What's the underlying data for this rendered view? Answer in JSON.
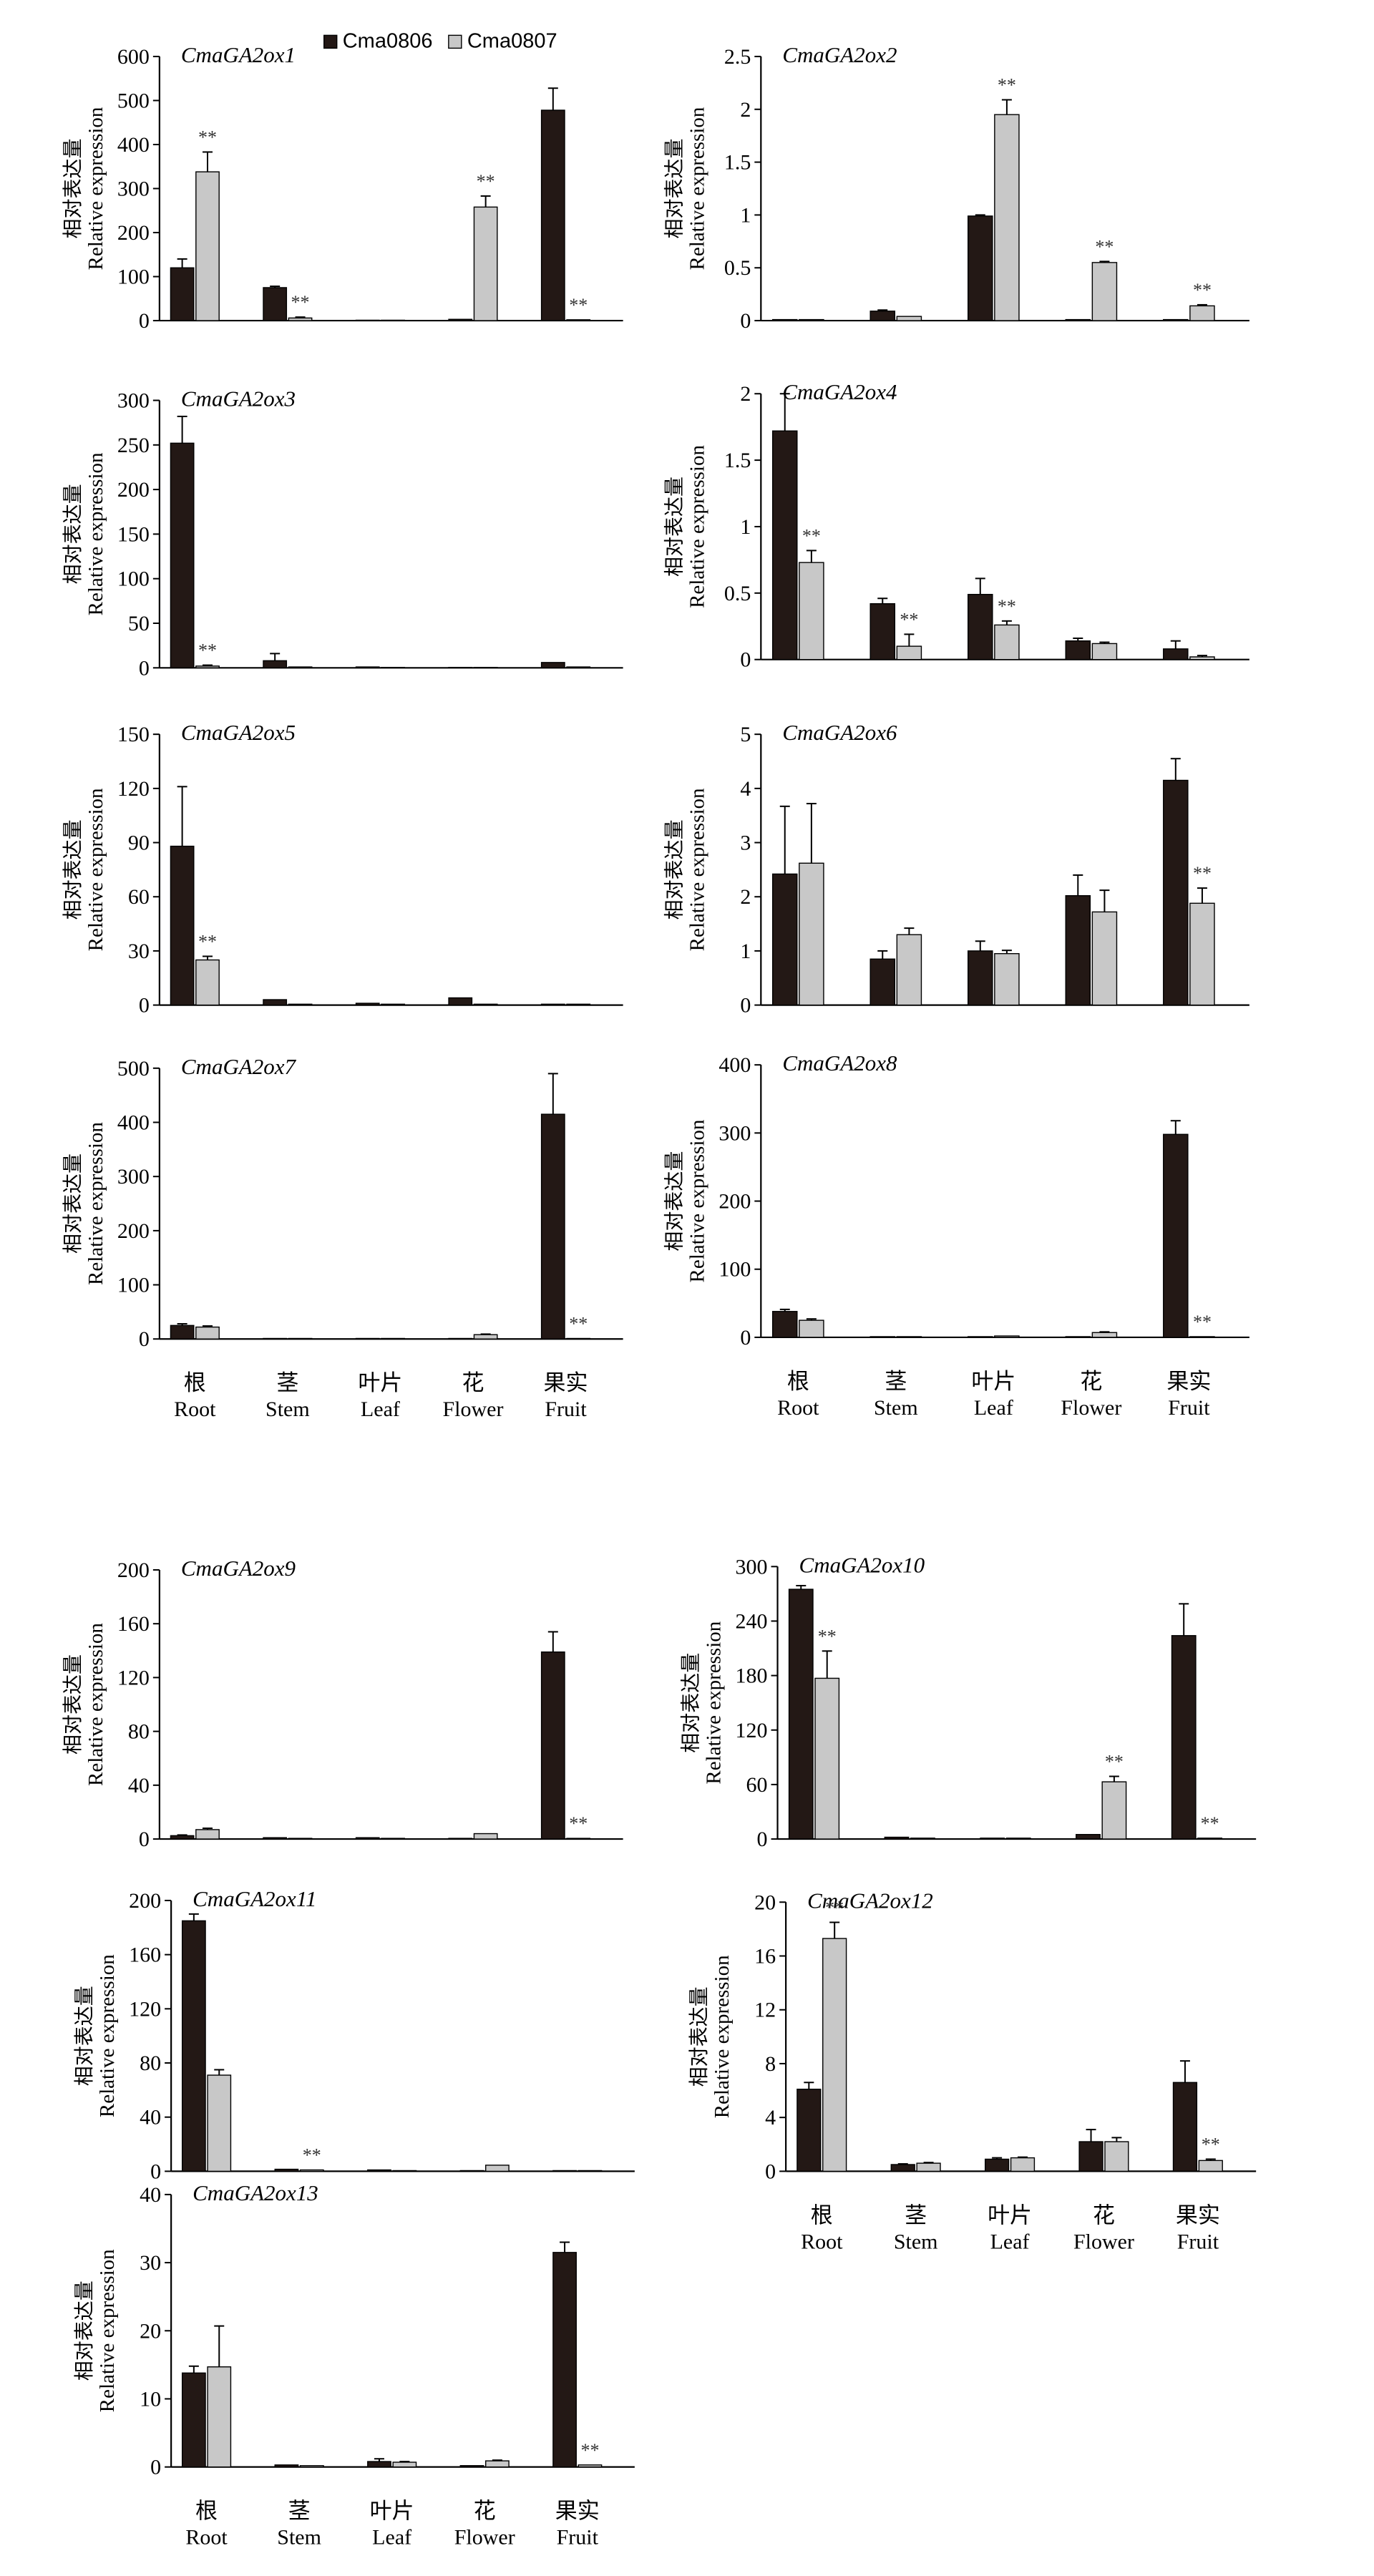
{
  "colors": {
    "Cma0806": "#231815",
    "Cma0807": "#c8c8c8",
    "axis": "#000000"
  },
  "legend": [
    {
      "name": "Cma0806",
      "color": "#231815"
    },
    {
      "name": "Cma0807",
      "color": "#c8c8c8"
    }
  ],
  "y_title_cn": "相对表达量",
  "y_title_en": "Relative expression",
  "categories": [
    {
      "cn": "根",
      "en": "Root"
    },
    {
      "cn": "茎",
      "en": "Stem"
    },
    {
      "cn": "叶片",
      "en": "Leaf"
    },
    {
      "cn": "花",
      "en": "Flower"
    },
    {
      "cn": "果实",
      "en": "Fruit"
    }
  ],
  "significance_mark": "**",
  "chart_data": [
    {
      "type": "bar",
      "title": "CmaGA2ox1",
      "ylim": [
        0,
        600
      ],
      "yticks": [
        "0",
        "100",
        "200",
        "300",
        "400",
        "500",
        "600"
      ],
      "series": [
        {
          "name": "Cma0806",
          "values": [
            120,
            75,
            1,
            3,
            478
          ],
          "errors": [
            20,
            3,
            0,
            0,
            50
          ]
        },
        {
          "name": "Cma0807",
          "values": [
            338,
            6,
            1,
            258,
            2
          ],
          "errors": [
            45,
            2,
            0,
            25,
            0
          ]
        }
      ],
      "significance": [
        [
          1,
          0,
          "**"
        ],
        [
          1,
          1,
          "**"
        ],
        [
          1,
          3,
          "**"
        ],
        [
          1,
          4,
          "**"
        ]
      ]
    },
    {
      "type": "bar",
      "title": "CmaGA2ox2",
      "ylim": [
        0,
        2.5
      ],
      "yticks": [
        "0",
        "0.5",
        "1",
        "1.5",
        "2",
        "2.5"
      ],
      "series": [
        {
          "name": "Cma0806",
          "values": [
            0.01,
            0.09,
            0.99,
            0.01,
            0.01
          ],
          "errors": [
            0,
            0.01,
            0.01,
            0,
            0
          ]
        },
        {
          "name": "Cma0807",
          "values": [
            0.01,
            0.04,
            1.95,
            0.55,
            0.14
          ],
          "errors": [
            0,
            0,
            0.14,
            0.01,
            0.01
          ]
        }
      ],
      "significance": [
        [
          1,
          2,
          "**"
        ],
        [
          1,
          3,
          "**"
        ],
        [
          1,
          4,
          "**"
        ]
      ]
    },
    {
      "type": "bar",
      "title": "CmaGA2ox3",
      "ylim": [
        0,
        300
      ],
      "yticks": [
        "0",
        "50",
        "100",
        "150",
        "200",
        "250",
        "300"
      ],
      "series": [
        {
          "name": "Cma0806",
          "values": [
            252,
            8,
            1,
            0.5,
            6
          ],
          "errors": [
            30,
            8,
            0,
            0,
            0
          ]
        },
        {
          "name": "Cma0807",
          "values": [
            2,
            1,
            0.5,
            0.5,
            1
          ],
          "errors": [
            1,
            0,
            0,
            0,
            0
          ]
        }
      ],
      "significance": [
        [
          1,
          0,
          "**"
        ]
      ]
    },
    {
      "type": "bar",
      "title": "CmaGA2ox4",
      "ylim": [
        0,
        2
      ],
      "yticks": [
        "0",
        "0.5",
        "1",
        "1.5",
        "2"
      ],
      "series": [
        {
          "name": "Cma0806",
          "values": [
            1.72,
            0.42,
            0.49,
            0.14,
            0.08
          ],
          "errors": [
            0.28,
            0.04,
            0.12,
            0.02,
            0.06
          ]
        },
        {
          "name": "Cma0807",
          "values": [
            0.73,
            0.1,
            0.26,
            0.12,
            0.02
          ],
          "errors": [
            0.09,
            0.09,
            0.03,
            0.01,
            0.01
          ]
        }
      ],
      "significance": [
        [
          1,
          0,
          "**"
        ],
        [
          1,
          1,
          "**"
        ],
        [
          1,
          2,
          "**"
        ]
      ]
    },
    {
      "type": "bar",
      "title": "CmaGA2ox5",
      "ylim": [
        0,
        150
      ],
      "yticks": [
        "0",
        "30",
        "60",
        "90",
        "120",
        "150"
      ],
      "series": [
        {
          "name": "Cma0806",
          "values": [
            88,
            3,
            1,
            4,
            0.5
          ],
          "errors": [
            33,
            0,
            0,
            0,
            0
          ]
        },
        {
          "name": "Cma0807",
          "values": [
            25,
            0.5,
            0.5,
            0.5,
            0.5
          ],
          "errors": [
            2,
            0,
            0,
            0,
            0
          ]
        }
      ],
      "significance": [
        [
          1,
          0,
          "**"
        ]
      ]
    },
    {
      "type": "bar",
      "title": "CmaGA2ox6",
      "ylim": [
        0,
        5
      ],
      "yticks": [
        "0",
        "1",
        "2",
        "3",
        "4",
        "5"
      ],
      "series": [
        {
          "name": "Cma0806",
          "values": [
            2.42,
            0.85,
            1.0,
            2.02,
            4.15
          ],
          "errors": [
            1.25,
            0.15,
            0.18,
            0.38,
            0.4
          ]
        },
        {
          "name": "Cma0807",
          "values": [
            2.62,
            1.3,
            0.95,
            1.72,
            1.88
          ],
          "errors": [
            1.1,
            0.12,
            0.06,
            0.4,
            0.28
          ]
        }
      ],
      "significance": [
        [
          1,
          4,
          "**"
        ]
      ]
    },
    {
      "type": "bar",
      "title": "CmaGA2ox7",
      "ylim": [
        0,
        500
      ],
      "yticks": [
        "0",
        "100",
        "200",
        "300",
        "400",
        "500"
      ],
      "series": [
        {
          "name": "Cma0806",
          "values": [
            25,
            1,
            1,
            1,
            415
          ],
          "errors": [
            3,
            0,
            0,
            0,
            75
          ]
        },
        {
          "name": "Cma0807",
          "values": [
            22,
            1,
            1,
            8,
            1
          ],
          "errors": [
            2,
            0,
            0,
            1,
            0
          ]
        }
      ],
      "significance": [
        [
          1,
          4,
          "**"
        ]
      ]
    },
    {
      "type": "bar",
      "title": "CmaGA2ox8",
      "ylim": [
        0,
        400
      ],
      "yticks": [
        "0",
        "100",
        "200",
        "300",
        "400"
      ],
      "series": [
        {
          "name": "Cma0806",
          "values": [
            38,
            1,
            1,
            1,
            298
          ],
          "errors": [
            3,
            0,
            0,
            0,
            20
          ]
        },
        {
          "name": "Cma0807",
          "values": [
            25,
            1,
            2,
            7,
            1
          ],
          "errors": [
            2,
            0,
            0,
            1,
            0
          ]
        }
      ],
      "significance": [
        [
          1,
          4,
          "**"
        ]
      ]
    },
    {
      "type": "bar",
      "title": "CmaGA2ox9",
      "ylim": [
        0,
        200
      ],
      "yticks": [
        "0",
        "40",
        "80",
        "120",
        "160",
        "200"
      ],
      "series": [
        {
          "name": "Cma0806",
          "values": [
            2.5,
            1,
            1,
            0.5,
            139
          ],
          "errors": [
            0.5,
            0,
            0,
            0,
            15
          ]
        },
        {
          "name": "Cma0807",
          "values": [
            7,
            0.5,
            0.5,
            4,
            0.5
          ],
          "errors": [
            1,
            0,
            0,
            0,
            0
          ]
        }
      ],
      "significance": [
        [
          1,
          4,
          "**"
        ]
      ]
    },
    {
      "type": "bar",
      "title": "CmaGA2ox10",
      "ylim": [
        0,
        300
      ],
      "yticks": [
        "0",
        "60",
        "120",
        "180",
        "240",
        "300"
      ],
      "series": [
        {
          "name": "Cma0806",
          "values": [
            275,
            2,
            1,
            5,
            224
          ],
          "errors": [
            4,
            0,
            0,
            0,
            35
          ]
        },
        {
          "name": "Cma0807",
          "values": [
            177,
            1,
            1,
            63,
            1
          ],
          "errors": [
            30,
            0,
            0,
            6,
            0
          ]
        }
      ],
      "significance": [
        [
          1,
          0,
          "**"
        ],
        [
          1,
          3,
          "**"
        ],
        [
          1,
          4,
          "**"
        ]
      ]
    },
    {
      "type": "bar",
      "title": "CmaGA2ox11",
      "ylim": [
        0,
        200
      ],
      "yticks": [
        "0",
        "40",
        "80",
        "120",
        "160",
        "200"
      ],
      "series": [
        {
          "name": "Cma0806",
          "values": [
            185,
            1.5,
            1,
            0.5,
            0.5
          ],
          "errors": [
            5,
            0,
            0,
            0,
            0
          ]
        },
        {
          "name": "Cma0807",
          "values": [
            71,
            1,
            0.5,
            4.5,
            0.5
          ],
          "errors": [
            4,
            0,
            0,
            0,
            0
          ]
        }
      ],
      "significance": [
        [
          1,
          1,
          "**"
        ]
      ]
    },
    {
      "type": "bar",
      "title": "CmaGA2ox12",
      "ylim": [
        0,
        20
      ],
      "yticks": [
        "0",
        "4",
        "8",
        "12",
        "16",
        "20"
      ],
      "series": [
        {
          "name": "Cma0806",
          "values": [
            6.1,
            0.5,
            0.9,
            2.2,
            6.6
          ],
          "errors": [
            0.5,
            0.05,
            0.1,
            0.9,
            1.6
          ]
        },
        {
          "name": "Cma0807",
          "values": [
            17.3,
            0.6,
            1.0,
            2.2,
            0.8
          ],
          "errors": [
            1.2,
            0.05,
            0.05,
            0.3,
            0.1
          ]
        }
      ],
      "significance": [
        [
          1,
          0,
          "**"
        ],
        [
          1,
          4,
          "**"
        ]
      ]
    },
    {
      "type": "bar",
      "title": "CmaGA2ox13",
      "ylim": [
        0,
        40
      ],
      "yticks": [
        "0",
        "10",
        "20",
        "30",
        "40"
      ],
      "series": [
        {
          "name": "Cma0806",
          "values": [
            13.8,
            0.3,
            0.8,
            0.2,
            31.5
          ],
          "errors": [
            1,
            0,
            0.4,
            0,
            1.5
          ]
        },
        {
          "name": "Cma0807",
          "values": [
            14.7,
            0.2,
            0.7,
            0.9,
            0.3
          ],
          "errors": [
            6,
            0,
            0.1,
            0.1,
            0
          ]
        }
      ],
      "significance": [
        [
          1,
          4,
          "**"
        ]
      ]
    }
  ]
}
